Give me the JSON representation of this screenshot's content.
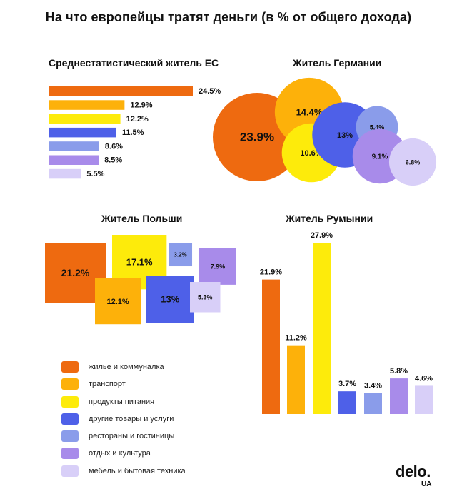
{
  "title": "На что европейцы тратят деньги (в % от общего дохода)",
  "logo": {
    "word": "delo.",
    "sub": "UA"
  },
  "legend": [
    {
      "label": "жилье и коммуналка",
      "color": "#EE6A10"
    },
    {
      "label": "транспорт",
      "color": "#FDB10A"
    },
    {
      "label": "продукты питания",
      "color": "#FDEB0B"
    },
    {
      "label": "другие товары и услуги",
      "color": "#4E60E8"
    },
    {
      "label": "рестораны и гостиницы",
      "color": "#8A9CEA"
    },
    {
      "label": "отдых и культура",
      "color": "#A88BEA"
    },
    {
      "label": "мебель и бытовая техника",
      "color": "#D8CFF8"
    }
  ],
  "chart_data": [
    {
      "type": "bar",
      "orientation": "horizontal",
      "title": "Среднестатистический житель ЕС",
      "categories": [
        "жилье и коммуналка",
        "транспорт",
        "продукты питания",
        "другие товары и услуги",
        "рестораны и гостиницы",
        "отдых и культура",
        "мебель и бытовая техника"
      ],
      "values": [
        24.5,
        12.9,
        12.2,
        11.5,
        8.6,
        8.5,
        5.5
      ],
      "labels": [
        "24.5%",
        "12.9%",
        "12.2%",
        "11.5%",
        "8.6%",
        "8.5%",
        "5.5%"
      ]
    },
    {
      "type": "bubble",
      "title": "Житель Германии",
      "categories": [
        "жилье и коммуналка",
        "транспорт",
        "продукты питания",
        "другие товары и услуги",
        "рестораны и гостиницы",
        "отдых и культура",
        "мебель и бытовая техника"
      ],
      "values": [
        23.9,
        14.4,
        10.6,
        13,
        5.4,
        9.1,
        6.8
      ],
      "labels": [
        "23.9%",
        "14.4%",
        "10.6%",
        "13%",
        "5.4%",
        "9.1%",
        "6.8%"
      ]
    },
    {
      "type": "squares",
      "title": "Житель Польши",
      "categories": [
        "жилье и коммуналка",
        "транспорт",
        "продукты питания",
        "другие товары и услуги",
        "рестораны и гостиницы",
        "отдых и культура",
        "мебель и бытовая техника"
      ],
      "values": [
        21.2,
        12.1,
        17.1,
        13,
        3.2,
        7.9,
        5.3
      ],
      "labels": [
        "21.2%",
        "12.1%",
        "17.1%",
        "13%",
        "3.2%",
        "7.9%",
        "5.3%"
      ]
    },
    {
      "type": "bar",
      "orientation": "vertical",
      "title": "Житель Румынии",
      "categories": [
        "жилье и коммуналка",
        "транспорт",
        "продукты питания",
        "другие товары и услуги",
        "рестораны и гостиницы",
        "отдых и культура",
        "мебель и бытовая техника"
      ],
      "values": [
        21.9,
        11.2,
        27.9,
        3.7,
        3.4,
        5.8,
        4.6
      ],
      "labels": [
        "21.9%",
        "11.2%",
        "27.9%",
        "3.7%",
        "3.4%",
        "5.8%",
        "4.6%"
      ]
    }
  ]
}
